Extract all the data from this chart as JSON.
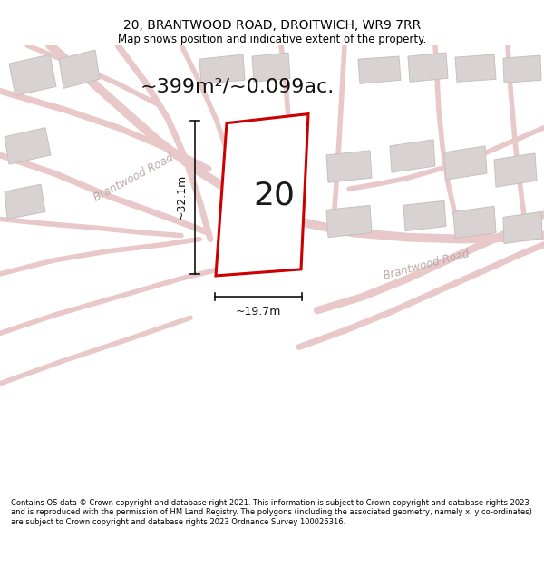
{
  "title": "20, BRANTWOOD ROAD, DROITWICH, WR9 7RR",
  "subtitle": "Map shows position and indicative extent of the property.",
  "area_label": "~399m²/~0.099ac.",
  "property_number": "20",
  "width_label": "~19.7m",
  "height_label": "~32.1m",
  "footer": "Contains OS data © Crown copyright and database right 2021. This information is subject to Crown copyright and database rights 2023 and is reproduced with the permission of HM Land Registry. The polygons (including the associated geometry, namely x, y co-ordinates) are subject to Crown copyright and database rights 2023 Ordnance Survey 100026316.",
  "map_bg": "#f0ecec",
  "road_color": "#e8c8c8",
  "road_lw": 6,
  "building_color": "#d8d2d2",
  "building_edge": "#c8c0c0",
  "property_color": "#ffffff",
  "property_edge": "#cc0000",
  "road_label_color": "#b8a8a8",
  "title_fontsize": 10,
  "subtitle_fontsize": 8.5,
  "footer_fontsize": 6.0,
  "area_fontsize": 16,
  "number_fontsize": 26,
  "dim_color": "#111111",
  "text_color": "#000000"
}
